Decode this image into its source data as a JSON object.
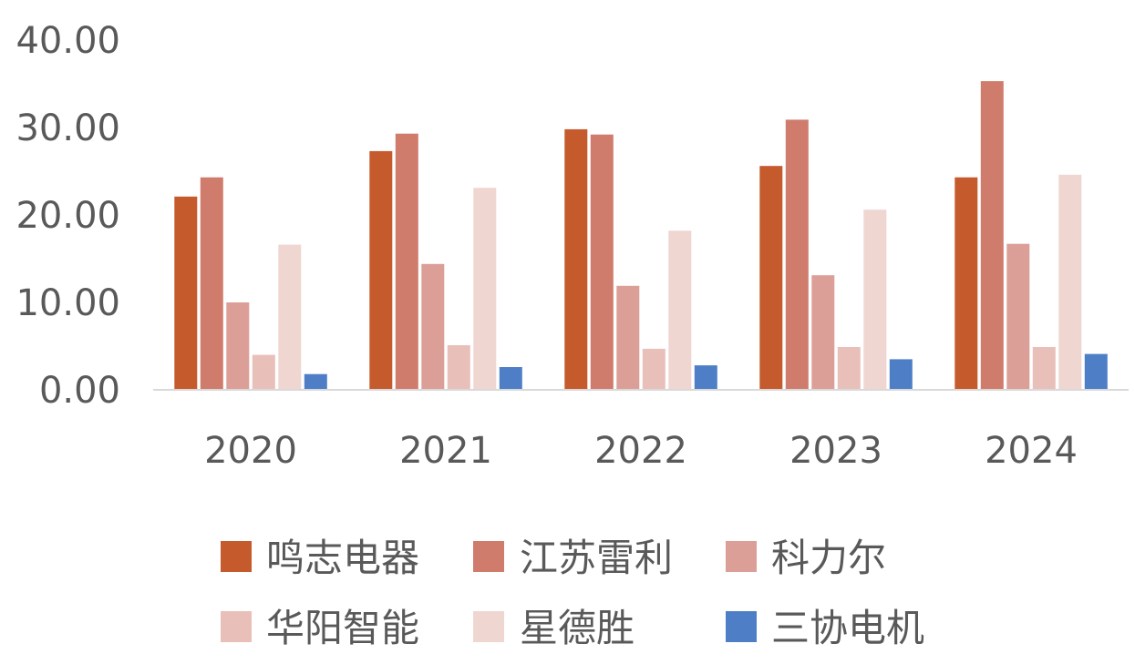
{
  "chart_data": {
    "type": "bar",
    "categories": [
      "2020",
      "2021",
      "2022",
      "2023",
      "2024"
    ],
    "series": [
      {
        "name": "鸣志电器",
        "color": "#C55A2D",
        "values": [
          22.1,
          27.3,
          29.8,
          25.6,
          24.3
        ]
      },
      {
        "name": "江苏雷利",
        "color": "#D07C6D",
        "values": [
          24.3,
          29.3,
          29.2,
          30.9,
          35.3
        ]
      },
      {
        "name": "科力尔",
        "color": "#DC9F97",
        "values": [
          10.0,
          14.4,
          11.9,
          13.1,
          16.7
        ]
      },
      {
        "name": "华阳智能",
        "color": "#E9C0B9",
        "values": [
          4.0,
          5.1,
          4.7,
          4.9,
          4.9
        ]
      },
      {
        "name": "星德胜",
        "color": "#F0D6D1",
        "values": [
          16.6,
          23.1,
          18.2,
          20.6,
          24.6
        ]
      },
      {
        "name": "三协电机",
        "color": "#4E7FC6",
        "values": [
          1.8,
          2.6,
          2.8,
          3.5,
          4.1
        ]
      }
    ],
    "yticks": [
      "0.00",
      "10.00",
      "20.00",
      "30.00",
      "40.00"
    ],
    "ylim": [
      0,
      40
    ],
    "title": "",
    "xlabel": "",
    "ylabel": "",
    "grid": false,
    "legend_position": "bottom"
  }
}
